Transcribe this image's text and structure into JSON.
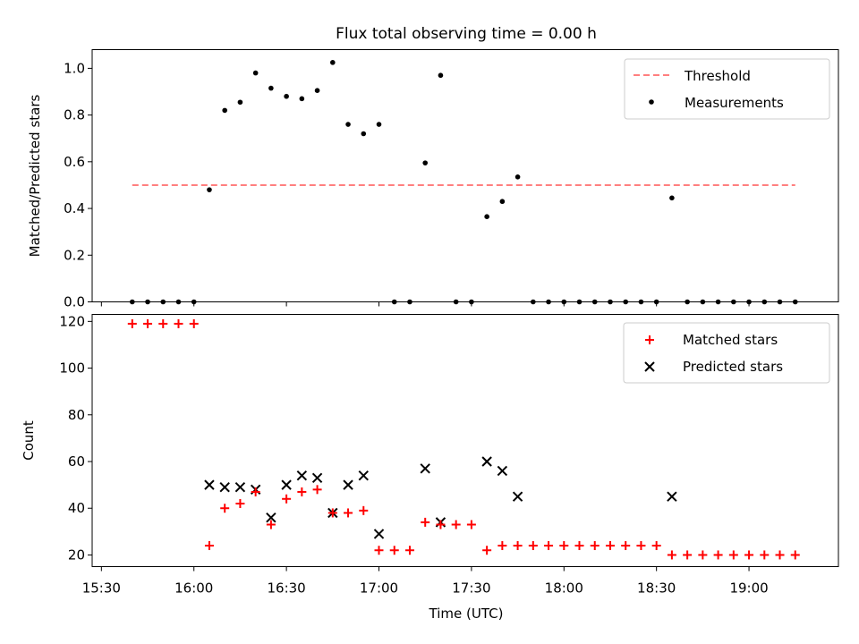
{
  "figure": {
    "title": "Flux total observing time = 0.00 h",
    "xlabel": "Time (UTC)"
  },
  "colors": {
    "threshold": "#ff7f7f",
    "measurement": "#000000",
    "matched": "#ff0000",
    "predicted": "#000000"
  },
  "chart_data": [
    {
      "type": "scatter",
      "panel": "top",
      "ylabel": "Matched/Predicted stars",
      "ylim": [
        0,
        1.08
      ],
      "yticks": [
        0.0,
        0.2,
        0.4,
        0.6,
        0.8,
        1.0
      ],
      "ytick_labels": [
        "0.0",
        "0.2",
        "0.4",
        "0.6",
        "0.8",
        "1.0"
      ],
      "xlim": [
        "15:27",
        "19:29"
      ],
      "legend": {
        "placement": "top-right",
        "entries": [
          "Threshold",
          "Measurements"
        ]
      },
      "threshold": {
        "name": "Threshold",
        "y": 0.5,
        "x_start": "15:40",
        "x_end": "19:15",
        "style": "dashed"
      },
      "series": [
        {
          "name": "Measurements",
          "marker": "dot",
          "points": [
            [
              "15:40",
              0.0
            ],
            [
              "15:45",
              0.0
            ],
            [
              "15:50",
              0.0
            ],
            [
              "15:55",
              0.0
            ],
            [
              "16:00",
              0.0
            ],
            [
              "16:05",
              0.48
            ],
            [
              "16:10",
              0.82
            ],
            [
              "16:15",
              0.855
            ],
            [
              "16:20",
              0.98
            ],
            [
              "16:25",
              0.915
            ],
            [
              "16:30",
              0.88
            ],
            [
              "16:35",
              0.87
            ],
            [
              "16:40",
              0.905
            ],
            [
              "16:45",
              1.025
            ],
            [
              "16:50",
              0.76
            ],
            [
              "16:55",
              0.72
            ],
            [
              "17:00",
              0.76
            ],
            [
              "17:05",
              0.0
            ],
            [
              "17:10",
              0.0
            ],
            [
              "17:15",
              0.595
            ],
            [
              "17:20",
              0.97
            ],
            [
              "17:25",
              0.0
            ],
            [
              "17:30",
              0.0
            ],
            [
              "17:35",
              0.365
            ],
            [
              "17:40",
              0.43
            ],
            [
              "17:45",
              0.535
            ],
            [
              "17:50",
              0.0
            ],
            [
              "17:55",
              0.0
            ],
            [
              "18:00",
              0.0
            ],
            [
              "18:05",
              0.0
            ],
            [
              "18:10",
              0.0
            ],
            [
              "18:15",
              0.0
            ],
            [
              "18:20",
              0.0
            ],
            [
              "18:25",
              0.0
            ],
            [
              "18:30",
              0.0
            ],
            [
              "18:35",
              0.445
            ],
            [
              "18:40",
              0.0
            ],
            [
              "18:45",
              0.0
            ],
            [
              "18:50",
              0.0
            ],
            [
              "18:55",
              0.0
            ],
            [
              "19:00",
              0.0
            ],
            [
              "19:05",
              0.0
            ],
            [
              "19:10",
              0.0
            ],
            [
              "19:15",
              0.0
            ]
          ]
        }
      ]
    },
    {
      "type": "scatter",
      "panel": "bottom",
      "ylabel": "Count",
      "ylim": [
        15,
        123
      ],
      "yticks": [
        20,
        40,
        60,
        80,
        100,
        120
      ],
      "ytick_labels": [
        "20",
        "40",
        "60",
        "80",
        "100",
        "120"
      ],
      "xlim": [
        "15:27",
        "19:29"
      ],
      "xticks": [
        "15:30",
        "16:00",
        "16:30",
        "17:00",
        "17:30",
        "18:00",
        "18:30",
        "19:00"
      ],
      "xtick_labels": [
        "15:30",
        "16:00",
        "16:30",
        "17:00",
        "17:30",
        "18:00",
        "18:30",
        "19:00"
      ],
      "legend": {
        "placement": "top-right",
        "entries": [
          "Matched stars",
          "Predicted stars"
        ]
      },
      "series": [
        {
          "name": "Matched stars",
          "marker": "plus",
          "points": [
            [
              "15:40",
              119
            ],
            [
              "15:45",
              119
            ],
            [
              "15:50",
              119
            ],
            [
              "15:55",
              119
            ],
            [
              "16:00",
              119
            ],
            [
              "16:05",
              24
            ],
            [
              "16:10",
              40
            ],
            [
              "16:15",
              42
            ],
            [
              "16:20",
              47
            ],
            [
              "16:25",
              33
            ],
            [
              "16:30",
              44
            ],
            [
              "16:35",
              47
            ],
            [
              "16:40",
              48
            ],
            [
              "16:45",
              38
            ],
            [
              "16:50",
              38
            ],
            [
              "16:55",
              39
            ],
            [
              "17:00",
              22
            ],
            [
              "17:05",
              22
            ],
            [
              "17:10",
              22
            ],
            [
              "17:15",
              34
            ],
            [
              "17:20",
              33
            ],
            [
              "17:25",
              33
            ],
            [
              "17:30",
              33
            ],
            [
              "17:35",
              22
            ],
            [
              "17:40",
              24
            ],
            [
              "17:45",
              24
            ],
            [
              "17:50",
              24
            ],
            [
              "17:55",
              24
            ],
            [
              "18:00",
              24
            ],
            [
              "18:05",
              24
            ],
            [
              "18:10",
              24
            ],
            [
              "18:15",
              24
            ],
            [
              "18:20",
              24
            ],
            [
              "18:25",
              24
            ],
            [
              "18:30",
              24
            ],
            [
              "18:35",
              20
            ],
            [
              "18:40",
              20
            ],
            [
              "18:45",
              20
            ],
            [
              "18:50",
              20
            ],
            [
              "18:55",
              20
            ],
            [
              "19:00",
              20
            ],
            [
              "19:05",
              20
            ],
            [
              "19:10",
              20
            ],
            [
              "19:15",
              20
            ]
          ]
        },
        {
          "name": "Predicted stars",
          "marker": "x",
          "points": [
            [
              "16:05",
              50
            ],
            [
              "16:10",
              49
            ],
            [
              "16:15",
              49
            ],
            [
              "16:20",
              48
            ],
            [
              "16:25",
              36
            ],
            [
              "16:30",
              50
            ],
            [
              "16:35",
              54
            ],
            [
              "16:40",
              53
            ],
            [
              "16:45",
              38
            ],
            [
              "16:50",
              50
            ],
            [
              "16:55",
              54
            ],
            [
              "17:00",
              29
            ],
            [
              "17:15",
              57
            ],
            [
              "17:20",
              34
            ],
            [
              "17:35",
              60
            ],
            [
              "17:40",
              56
            ],
            [
              "17:45",
              45
            ],
            [
              "18:35",
              45
            ]
          ]
        }
      ]
    }
  ]
}
